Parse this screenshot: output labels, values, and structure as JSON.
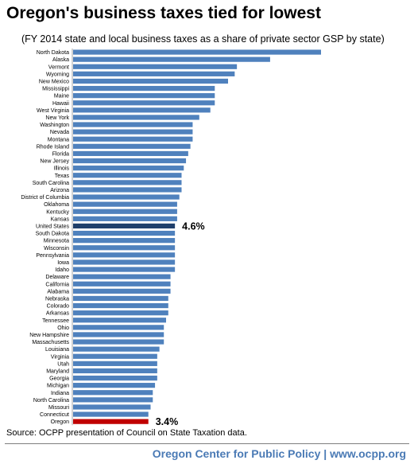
{
  "title": "Oregon's business taxes tied for lowest",
  "subtitle": "(FY 2014 state and local business taxes as a share of private sector GSP by state)",
  "source": "Source: OCPP presentation of Council on State Taxation data.",
  "footer": "Oregon Center for Public Policy | www.ocpp.org",
  "colors": {
    "default_bar": "#4f81bd",
    "us_bar": "#1f3f6b",
    "oregon_bar": "#c00000"
  },
  "chart_data": {
    "type": "bar",
    "orientation": "horizontal",
    "title": "Oregon's business taxes tied for lowest",
    "subtitle": "(FY 2014 state and local business taxes as a share of private sector GSP by state)",
    "unit": "%",
    "xlim": [
      0,
      11.2
    ],
    "grid": false,
    "legend": "none",
    "categories": [
      "North Dakota",
      "Alaska",
      "Vermont",
      "Wyoming",
      "New Mexico",
      "Mississippi",
      "Maine",
      "Hawaii",
      "West Virginia",
      "New York",
      "Washington",
      "Nevada",
      "Montana",
      "Rhode Island",
      "Florida",
      "New Jersey",
      "Illinois",
      "Texas",
      "South Carolina",
      "Arizona",
      "District of Columbia",
      "Oklahoma",
      "Kentucky",
      "Kansas",
      "United States",
      "South Dakota",
      "Minnesota",
      "Wisconsin",
      "Pennsylvania",
      "Iowa",
      "Idaho",
      "Delaware",
      "California",
      "Alabama",
      "Nebraska",
      "Colorado",
      "Arkansas",
      "Tennessee",
      "Ohio",
      "New Hampshire",
      "Massachusetts",
      "Louisiana",
      "Virginia",
      "Utah",
      "Maryland",
      "Georgia",
      "Michigan",
      "Indiana",
      "North Carolina",
      "Missouri",
      "Connecticut",
      "Oregon"
    ],
    "values": [
      11.2,
      8.9,
      7.4,
      7.3,
      7.0,
      6.4,
      6.4,
      6.4,
      6.2,
      5.7,
      5.4,
      5.4,
      5.4,
      5.3,
      5.2,
      5.1,
      5.0,
      4.9,
      4.9,
      4.9,
      4.8,
      4.7,
      4.7,
      4.7,
      4.6,
      4.6,
      4.6,
      4.6,
      4.6,
      4.6,
      4.6,
      4.4,
      4.4,
      4.4,
      4.3,
      4.3,
      4.3,
      4.2,
      4.1,
      4.1,
      4.1,
      3.9,
      3.8,
      3.8,
      3.8,
      3.8,
      3.7,
      3.6,
      3.6,
      3.5,
      3.4,
      3.4
    ],
    "annotations": [
      {
        "category": "United States",
        "label": "4.6%"
      },
      {
        "category": "Oregon",
        "label": "3.4%"
      }
    ]
  }
}
